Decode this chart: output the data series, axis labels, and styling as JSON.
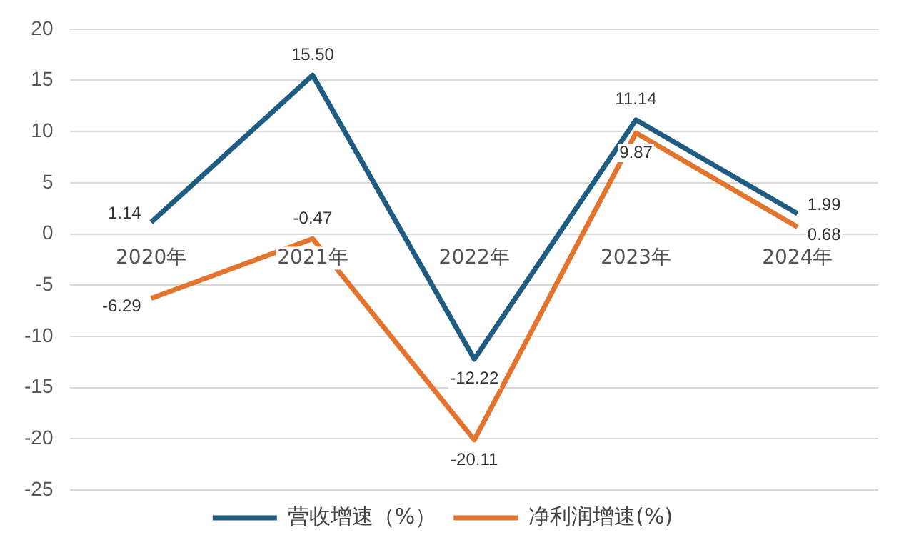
{
  "chart_data": {
    "type": "line",
    "categories": [
      "2020年",
      "2021年",
      "2022年",
      "2023年",
      "2024年"
    ],
    "series": [
      {
        "name": "营收增速（%）",
        "color": "#1f5c82",
        "values": [
          1.14,
          15.5,
          -12.22,
          11.14,
          1.99
        ],
        "value_labels": [
          "1.14",
          "15.50",
          "-12.22",
          "11.14",
          "1.99"
        ]
      },
      {
        "name": "净利润增速(%)",
        "color": "#e2742d",
        "values": [
          -6.29,
          -0.47,
          -20.11,
          9.87,
          0.68
        ],
        "value_labels": [
          "-6.29",
          "-0.47",
          "-20.11",
          "9.87",
          "0.68"
        ]
      }
    ],
    "ylim": [
      -25,
      20
    ],
    "yticks": [
      -25,
      -20,
      -15,
      -10,
      -5,
      0,
      5,
      10,
      15,
      20
    ],
    "grid": "y",
    "legend": "bottom",
    "marker": "none",
    "line_style": "solid"
  }
}
